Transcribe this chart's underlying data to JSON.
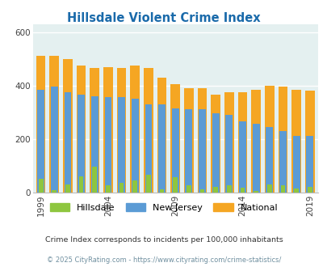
{
  "title": "Hillsdale Violent Crime Index",
  "title_color": "#1a6aaa",
  "years": [
    1999,
    2000,
    2001,
    2002,
    2003,
    2004,
    2005,
    2006,
    2007,
    2008,
    2009,
    2010,
    2011,
    2012,
    2013,
    2014,
    2015,
    2016,
    2017,
    2018,
    2019
  ],
  "hillsdale": [
    50,
    8,
    30,
    60,
    95,
    25,
    35,
    45,
    65,
    12,
    55,
    25,
    10,
    20,
    25,
    18,
    5,
    30,
    25,
    15,
    20
  ],
  "new_jersey": [
    385,
    395,
    375,
    365,
    360,
    355,
    355,
    350,
    330,
    330,
    315,
    310,
    310,
    295,
    290,
    265,
    255,
    245,
    230,
    210,
    210
  ],
  "national": [
    510,
    510,
    500,
    475,
    465,
    470,
    465,
    475,
    465,
    430,
    405,
    390,
    390,
    365,
    375,
    375,
    385,
    400,
    395,
    385,
    380
  ],
  "hillsdale_color": "#8ec63f",
  "nj_color": "#5b9bd5",
  "national_color": "#f5a623",
  "bg_color": "#e4f0f0",
  "ylim": [
    0,
    630
  ],
  "yticks": [
    0,
    200,
    400,
    600
  ],
  "xlabel_years": [
    1999,
    2004,
    2009,
    2014,
    2019
  ],
  "subtitle": "Crime Index corresponds to incidents per 100,000 inhabitants",
  "footer": "© 2025 CityRating.com - https://www.cityrating.com/crime-statistics/",
  "subtitle_color": "#333333",
  "footer_color": "#7090a0",
  "legend_labels": [
    "Hillsdale",
    "New Jersey",
    "National"
  ],
  "bar_width": 0.7,
  "grid_color": "#ffffff"
}
